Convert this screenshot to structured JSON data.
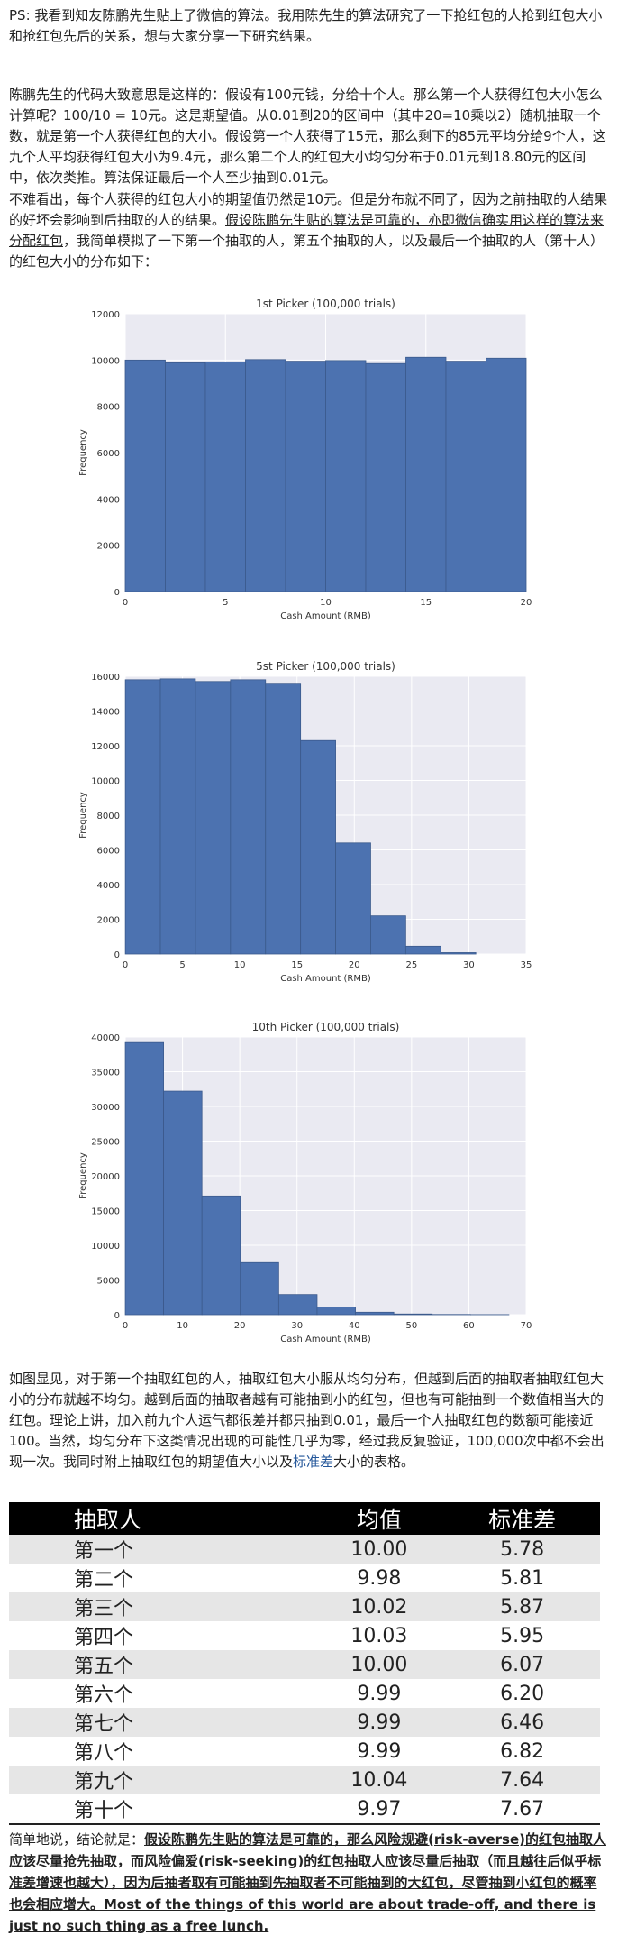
{
  "paragraphs": [
    "PS: 我看到知友陈鹏先生贴上了微信的算法。我用陈先生的算法研究了一下抢红包的人抢到红包大小和抢红包先后的关系，想与大家分享一下研究结果。",
    "陈鹏先生的代码大致意思是这样的：假设有100元钱，分给十个人。那么第一个人获得红包大小怎么计算呢？100/10 = 10元。这是期望值。从0.01到20的区间中（其中20=10乘以2）随机抽取一个数，就是第一个人获得红包的大小。假设第一个人获得了15元，那么剩下的85元平均分给9个人，这九个人平均获得红包大小为9.4元，那么第二个人的红包大小均匀分布于0.01元到18.80元的区间中，依次类推。算法保证最后一个人至少抽到0.01元。",
    {
      "start": "不难看出，每个人获得的红包大小的期望值仍然是10元。但是分布就不同了，因为之前抽取的人结果的好坏会影响到后抽取的人的结果。",
      "underlined": "假设陈鹏先生贴的算法是可靠的，亦即微信确实用这样的算法来分配红包",
      "end": "，我简单模拟了一下第一个抽取的人，第五个抽取的人，以及最后一个抽取的人（第十人）的红包大小的分布如下："
    },
    {
      "start": "如图显见，对于第一个抽取红包的人，抽取红包大小服从均匀分布，但越到后面的抽取者抽取红包大小的分布就越不均匀。越到后面的抽取者越有可能抽到小的红包，但也有可能抽到一个数值相当大的红包。理论上讲，加入前九个人运气都很差并都只抽到0.01，最后一个人抽取红包的数额可能接近100。当然，均匀分布下这类情况出现的可能性几乎为零，经过我反复验证，100,000次中都不会出现一次。我同时附上抽取红包的期望值大小以及",
      "link": "标准差",
      "end": "大小的表格。"
    }
  ],
  "chart_data": [
    {
      "type": "histogram",
      "title": "1st Picker (100,000 trials)",
      "x_label": "Cash Amount (RMB)",
      "y_label": "Frequency",
      "color": "#4c72b0",
      "bins": [
        0,
        2,
        4,
        6,
        8,
        10,
        12,
        14,
        16,
        18,
        20
      ],
      "values": [
        10000,
        9880,
        9920,
        10020,
        9950,
        9980,
        9850,
        10120,
        9950,
        10080
      ],
      "xlim": [
        0,
        20
      ],
      "xticks": [
        0,
        5,
        10,
        15,
        20
      ],
      "ylim": [
        0,
        12000
      ],
      "yticks": [
        0,
        2000,
        4000,
        6000,
        8000,
        10000,
        12000
      ],
      "grid": true
    },
    {
      "type": "histogram",
      "title": "5st Picker (100,000 trials)",
      "x_label": "Cash Amount (RMB)",
      "y_label": "Frequency",
      "color": "#4c72b0",
      "bins": [
        0.01,
        3.07,
        6.13,
        9.19,
        12.25,
        15.31,
        18.37,
        21.43,
        24.49,
        27.55,
        30.61
      ],
      "values": [
        15800,
        15850,
        15700,
        15800,
        15600,
        12300,
        6400,
        2200,
        450,
        80
      ],
      "xlim": [
        0,
        35
      ],
      "xticks": [
        0,
        5,
        10,
        15,
        20,
        25,
        30,
        35
      ],
      "ylim": [
        0,
        16000
      ],
      "yticks": [
        0,
        2000,
        4000,
        6000,
        8000,
        10000,
        12000,
        14000,
        16000
      ],
      "grid": true
    },
    {
      "type": "histogram",
      "title": "10th Picker (100,000 trials)",
      "x_label": "Cash Amount (RMB)",
      "y_label": "Frequency",
      "color": "#4c72b0",
      "bins": [
        0.01,
        6.7,
        13.4,
        20.1,
        26.8,
        33.5,
        40.2,
        46.9,
        53.6,
        60.3,
        67
      ],
      "values": [
        39200,
        32200,
        17100,
        7500,
        2900,
        1100,
        350,
        100,
        30,
        10
      ],
      "xlim": [
        0,
        70
      ],
      "xticks": [
        0,
        10,
        20,
        30,
        40,
        50,
        60,
        70
      ],
      "ylim": [
        0,
        40000
      ],
      "yticks": [
        0,
        5000,
        10000,
        15000,
        20000,
        25000,
        30000,
        35000,
        40000
      ],
      "grid": true
    }
  ],
  "table": {
    "header": [
      "抽取人",
      "均值",
      "标准差"
    ],
    "rows": [
      [
        "第一个",
        "10.00",
        "5.78"
      ],
      [
        "第二个",
        "9.98",
        "5.81"
      ],
      [
        "第三个",
        "10.02",
        "5.87"
      ],
      [
        "第四个",
        "10.03",
        "5.95"
      ],
      [
        "第五个",
        "10.00",
        "6.07"
      ],
      [
        "第六个",
        "9.99",
        "6.20"
      ],
      [
        "第七个",
        "9.99",
        "6.46"
      ],
      [
        "第八个",
        "9.99",
        "6.82"
      ],
      [
        "第九个",
        "10.04",
        "7.64"
      ],
      [
        "第十个",
        "9.97",
        "7.67"
      ]
    ]
  },
  "conclusion": {
    "start": "简单地说，结论就是：",
    "emphasis": "假设陈鹏先生贴的算法是可靠的，那么风险规避(risk-averse)的红包抽取人应该尽量抢先抽取，而风险偏爱(risk-seeking)的红包抽取人应该尽量后抽取（而且越往后似乎标准差增速也越大），因为后抽者取有可能抽到先抽取者不可能抽到的大红包，尽管抽到小红包的概率也会相应增大。Most of the things of this world are about trade-off, and there is just no such thing as a free lunch."
  }
}
